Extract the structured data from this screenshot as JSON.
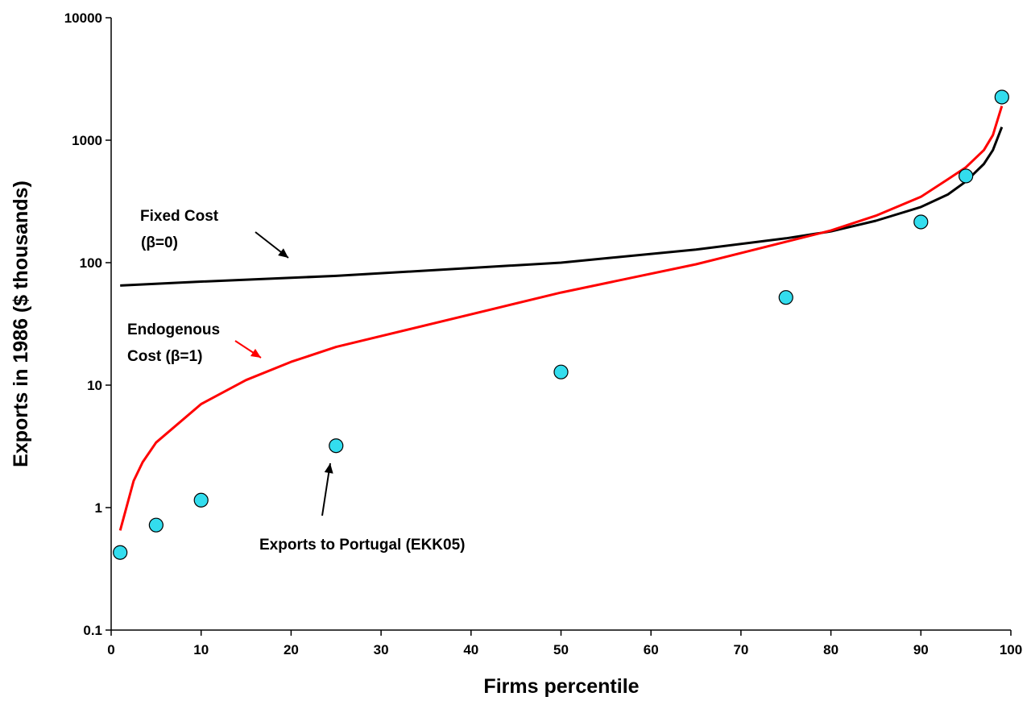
{
  "chart_data": {
    "type": "line",
    "title": "",
    "xlabel": "Firms percentile",
    "ylabel": "Exports in 1986 ($ thousands)",
    "xlim": [
      0,
      100
    ],
    "ylim": [
      0.1,
      10000
    ],
    "yscale": "log",
    "grid": false,
    "x_ticks": [
      0,
      10,
      20,
      30,
      40,
      50,
      60,
      70,
      80,
      90,
      100
    ],
    "x_tick_labels": [
      "0",
      "10",
      "20",
      "30",
      "40",
      "50",
      "60",
      "70",
      "80",
      "90",
      "100"
    ],
    "y_ticks": [
      0.1,
      1,
      10,
      100,
      1000,
      10000
    ],
    "y_tick_labels": [
      "0.1",
      "1",
      "10",
      "100",
      "1000",
      "10000"
    ],
    "series": [
      {
        "kind": "line",
        "color": "#000000",
        "x": [
          1,
          10,
          25,
          50,
          65,
          75,
          80,
          85,
          90,
          93,
          95,
          97,
          98,
          99
        ],
        "y": [
          65,
          70,
          78,
          100,
          128,
          158,
          180,
          220,
          285,
          360,
          460,
          640,
          830,
          1280
        ]
      },
      {
        "kind": "line",
        "color": "#ff0000",
        "x": [
          1,
          2.5,
          3.5,
          5,
          10,
          15,
          20,
          25,
          50,
          65,
          75,
          80,
          85,
          90,
          93,
          95,
          97,
          98,
          99
        ],
        "y": [
          0.65,
          1.65,
          2.35,
          3.4,
          7,
          11,
          15.5,
          20.5,
          57,
          97,
          148,
          183,
          242,
          345,
          480,
          600,
          830,
          1100,
          1900
        ]
      },
      {
        "kind": "scatter",
        "marker_color": "#33ddee",
        "x": [
          1,
          5,
          10,
          25,
          50,
          75,
          90,
          95,
          99
        ],
        "y": [
          0.43,
          0.72,
          1.15,
          3.2,
          12.8,
          52,
          215,
          510,
          2250
        ]
      }
    ],
    "annotations": [
      {
        "text": [
          "Fixed Cost",
          "(β=0)"
        ],
        "color": "#000000",
        "arrow_color": "#000000"
      },
      {
        "text": [
          "Endogenous",
          "Cost (β=1)"
        ],
        "color": "#000000",
        "arrow_color": "#ff0000"
      },
      {
        "text": [
          "Exports to Portugal (EKK05)"
        ],
        "color": "#000000",
        "arrow_color": "#000000"
      }
    ]
  }
}
